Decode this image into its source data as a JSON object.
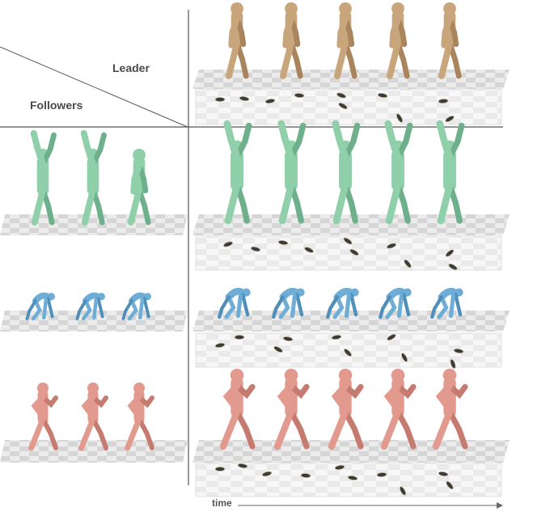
{
  "header": {
    "leader_label": "Leader",
    "followers_label": "Followers"
  },
  "axis": {
    "time_label": "time"
  },
  "rows": [
    {
      "name": "leader",
      "color": "#c9a57c",
      "shade": "#a9845c",
      "pose": "walk",
      "count": 5
    },
    {
      "name": "follower-green",
      "color": "#8fd0aa",
      "shade": "#6fb08c",
      "pose": "reach",
      "count": 5
    },
    {
      "name": "follower-blue",
      "color": "#6eaed6",
      "shade": "#4f8fba",
      "pose": "crouch",
      "count": 5
    },
    {
      "name": "follower-pink",
      "color": "#e39a8e",
      "shade": "#c67b70",
      "pose": "run",
      "count": 5
    }
  ],
  "colors": {
    "floor_light": "#e6e6e6",
    "floor_dark": "#cfcfcf",
    "divider": "#555555",
    "footprint": "#4a4036"
  }
}
